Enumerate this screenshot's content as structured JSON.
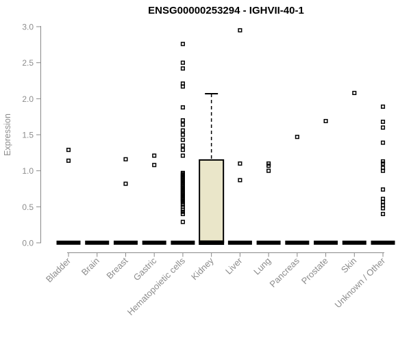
{
  "chart_data": {
    "type": "scatter",
    "subtype": "boxplot-with-points",
    "title": "ENSG00000253294 - IGHVII-40-1",
    "ylabel": "Expression",
    "xlabel": "",
    "ylim": [
      0.0,
      3.0
    ],
    "yticks": [
      "0.0",
      "0.5",
      "1.0",
      "1.5",
      "2.0",
      "2.5",
      "3.0"
    ],
    "grid": false,
    "legend": "none",
    "categories": [
      "Bladder",
      "Brain",
      "Breast",
      "Gastric",
      "Hematopoietic cells",
      "Kidney",
      "Liver",
      "Lung",
      "Pancreas",
      "Prostate",
      "Skin",
      "Unknown / Other"
    ],
    "series": [
      {
        "name": "Bladder",
        "zero_bar": true,
        "points": [
          1.29,
          1.14
        ]
      },
      {
        "name": "Brain",
        "zero_bar": true,
        "points": []
      },
      {
        "name": "Breast",
        "zero_bar": true,
        "points": [
          1.16,
          0.82
        ]
      },
      {
        "name": "Gastric",
        "zero_bar": true,
        "points": [
          1.21,
          1.08
        ]
      },
      {
        "name": "Hematopoietic cells",
        "zero_bar": true,
        "points": [
          2.76,
          2.5,
          2.42,
          2.21,
          2.17,
          1.88,
          1.7,
          1.64,
          1.56,
          1.5,
          1.43,
          1.35,
          1.29,
          1.21,
          0.97,
          0.955,
          0.94,
          0.925,
          0.91,
          0.895,
          0.88,
          0.865,
          0.85,
          0.835,
          0.82,
          0.805,
          0.79,
          0.775,
          0.76,
          0.745,
          0.73,
          0.715,
          0.7,
          0.685,
          0.67,
          0.655,
          0.64,
          0.625,
          0.61,
          0.595,
          0.58,
          0.565,
          0.53,
          0.5,
          0.46,
          0.43,
          0.4,
          0.29
        ]
      },
      {
        "name": "Kidney",
        "zero_bar": true,
        "points": []
      },
      {
        "name": "Liver",
        "zero_bar": true,
        "points": [
          2.95,
          1.1,
          0.87
        ]
      },
      {
        "name": "Lung",
        "zero_bar": true,
        "points": [
          1.1,
          1.07,
          1.0
        ]
      },
      {
        "name": "Pancreas",
        "zero_bar": true,
        "points": [
          1.47
        ]
      },
      {
        "name": "Prostate",
        "zero_bar": true,
        "points": [
          1.69
        ]
      },
      {
        "name": "Skin",
        "zero_bar": true,
        "points": [
          2.08
        ]
      },
      {
        "name": "Unknown / Other",
        "zero_bar": true,
        "points": [
          1.89,
          1.68,
          1.6,
          1.39,
          1.13,
          1.1,
          1.04,
          1.0,
          0.74,
          0.61,
          0.57,
          0.52,
          0.48,
          0.4
        ]
      }
    ],
    "box": {
      "category": "Kidney",
      "q1": 0.0,
      "median": 0.0,
      "q3": 1.15,
      "whisker_low": 0.0,
      "whisker_high": 2.07,
      "fill": "#EAE6C9"
    },
    "colors": {
      "title": "#000000",
      "axis": "#888888",
      "tick_text": "#8c8c8c",
      "point": "#000000",
      "zero_bar": "#000000",
      "box_fill": "#EAE6C9",
      "box_stroke": "#000000",
      "background": "#ffffff"
    }
  }
}
